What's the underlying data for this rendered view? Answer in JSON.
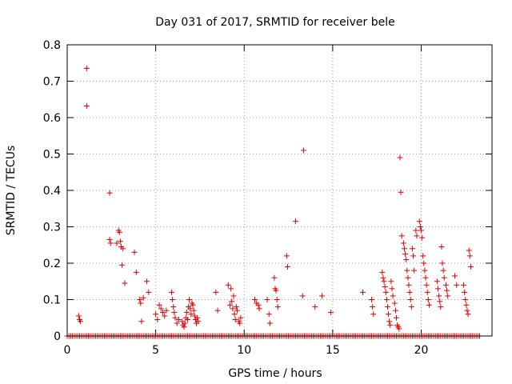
{
  "chart_data": {
    "type": "scatter",
    "title": "Day 031 of 2017, SRMTID for receiver bele",
    "xlabel": "GPS time / hours",
    "ylabel": "SRMTID / TECUs",
    "xlim": [
      0,
      24
    ],
    "ylim": [
      0,
      0.8
    ],
    "x_ticks": [
      0,
      5,
      10,
      15,
      20
    ],
    "y_ticks": [
      0,
      0.1,
      0.2,
      0.3,
      0.4,
      0.5,
      0.6,
      0.7,
      0.8
    ],
    "x_tick_labels": [
      "0",
      "5",
      "10",
      "15",
      "20"
    ],
    "y_tick_labels": [
      "0",
      "0.1",
      "0.2",
      "0.3",
      "0.4",
      "0.5",
      "0.6",
      "0.7",
      "0.8"
    ],
    "grid": true,
    "marker": "+",
    "marker_color": "#e00000",
    "series": [
      {
        "name": "SRMTID",
        "points": [
          [
            0.65,
            0.055
          ],
          [
            0.7,
            0.045
          ],
          [
            0.75,
            0.04
          ],
          [
            1.1,
            0.735
          ],
          [
            1.1,
            0.632
          ],
          [
            2.4,
            0.393
          ],
          [
            2.4,
            0.265
          ],
          [
            2.45,
            0.255
          ],
          [
            2.8,
            0.255
          ],
          [
            2.9,
            0.29
          ],
          [
            2.95,
            0.285
          ],
          [
            3.0,
            0.26
          ],
          [
            3.05,
            0.245
          ],
          [
            3.1,
            0.195
          ],
          [
            3.15,
            0.24
          ],
          [
            3.25,
            0.145
          ],
          [
            3.8,
            0.23
          ],
          [
            3.9,
            0.175
          ],
          [
            4.1,
            0.1
          ],
          [
            4.15,
            0.09
          ],
          [
            4.2,
            0.04
          ],
          [
            4.3,
            0.105
          ],
          [
            4.5,
            0.15
          ],
          [
            4.6,
            0.12
          ],
          [
            5.0,
            0.06
          ],
          [
            5.1,
            0.045
          ],
          [
            5.2,
            0.085
          ],
          [
            5.3,
            0.075
          ],
          [
            5.4,
            0.065
          ],
          [
            5.5,
            0.055
          ],
          [
            5.6,
            0.07
          ],
          [
            5.9,
            0.12
          ],
          [
            5.95,
            0.1
          ],
          [
            6.0,
            0.08
          ],
          [
            6.05,
            0.065
          ],
          [
            6.1,
            0.05
          ],
          [
            6.2,
            0.035
          ],
          [
            6.3,
            0.045
          ],
          [
            6.5,
            0.04
          ],
          [
            6.55,
            0.03
          ],
          [
            6.6,
            0.025
          ],
          [
            6.65,
            0.035
          ],
          [
            6.7,
            0.05
          ],
          [
            6.75,
            0.065
          ],
          [
            6.8,
            0.045
          ],
          [
            6.85,
            0.08
          ],
          [
            6.9,
            0.1
          ],
          [
            6.95,
            0.075
          ],
          [
            7.0,
            0.06
          ],
          [
            7.05,
            0.09
          ],
          [
            7.1,
            0.085
          ],
          [
            7.15,
            0.07
          ],
          [
            7.2,
            0.055
          ],
          [
            7.25,
            0.045
          ],
          [
            7.3,
            0.035
          ],
          [
            7.35,
            0.05
          ],
          [
            7.4,
            0.04
          ],
          [
            8.4,
            0.12
          ],
          [
            8.5,
            0.07
          ],
          [
            9.1,
            0.14
          ],
          [
            9.2,
            0.085
          ],
          [
            9.25,
            0.13
          ],
          [
            9.3,
            0.095
          ],
          [
            9.35,
            0.075
          ],
          [
            9.4,
            0.11
          ],
          [
            9.45,
            0.06
          ],
          [
            9.5,
            0.045
          ],
          [
            9.55,
            0.08
          ],
          [
            9.6,
            0.07
          ],
          [
            9.7,
            0.04
          ],
          [
            9.75,
            0.035
          ],
          [
            9.8,
            0.05
          ],
          [
            10.6,
            0.1
          ],
          [
            10.7,
            0.09
          ],
          [
            10.8,
            0.085
          ],
          [
            10.85,
            0.075
          ],
          [
            11.3,
            0.1
          ],
          [
            11.4,
            0.06
          ],
          [
            11.45,
            0.035
          ],
          [
            11.7,
            0.16
          ],
          [
            11.75,
            0.13
          ],
          [
            11.8,
            0.125
          ],
          [
            11.85,
            0.1
          ],
          [
            11.9,
            0.08
          ],
          [
            12.4,
            0.22
          ],
          [
            12.45,
            0.19
          ],
          [
            12.9,
            0.315
          ],
          [
            13.35,
            0.51
          ],
          [
            13.3,
            0.11
          ],
          [
            14.0,
            0.08
          ],
          [
            14.4,
            0.11
          ],
          [
            14.9,
            0.065
          ],
          [
            16.7,
            0.12
          ],
          [
            17.2,
            0.1
          ],
          [
            17.25,
            0.08
          ],
          [
            17.3,
            0.06
          ],
          [
            17.8,
            0.175
          ],
          [
            17.85,
            0.16
          ],
          [
            17.9,
            0.15
          ],
          [
            17.95,
            0.135
          ],
          [
            18.0,
            0.12
          ],
          [
            18.05,
            0.1
          ],
          [
            18.1,
            0.08
          ],
          [
            18.15,
            0.06
          ],
          [
            18.2,
            0.04
          ],
          [
            18.25,
            0.03
          ],
          [
            18.3,
            0.15
          ],
          [
            18.35,
            0.13
          ],
          [
            18.4,
            0.11
          ],
          [
            18.5,
            0.09
          ],
          [
            18.55,
            0.07
          ],
          [
            18.6,
            0.05
          ],
          [
            18.65,
            0.03
          ],
          [
            18.7,
            0.025
          ],
          [
            18.75,
            0.02
          ],
          [
            18.8,
            0.49
          ],
          [
            18.85,
            0.395
          ],
          [
            18.9,
            0.275
          ],
          [
            19.0,
            0.255
          ],
          [
            19.05,
            0.24
          ],
          [
            19.1,
            0.225
          ],
          [
            19.15,
            0.21
          ],
          [
            19.2,
            0.18
          ],
          [
            19.25,
            0.16
          ],
          [
            19.3,
            0.14
          ],
          [
            19.35,
            0.12
          ],
          [
            19.4,
            0.1
          ],
          [
            19.45,
            0.08
          ],
          [
            19.5,
            0.24
          ],
          [
            19.55,
            0.22
          ],
          [
            19.6,
            0.18
          ],
          [
            19.7,
            0.29
          ],
          [
            19.75,
            0.275
          ],
          [
            19.9,
            0.315
          ],
          [
            19.95,
            0.3
          ],
          [
            20.0,
            0.29
          ],
          [
            20.05,
            0.27
          ],
          [
            20.1,
            0.22
          ],
          [
            20.15,
            0.2
          ],
          [
            20.2,
            0.18
          ],
          [
            20.25,
            0.16
          ],
          [
            20.3,
            0.14
          ],
          [
            20.35,
            0.12
          ],
          [
            20.4,
            0.1
          ],
          [
            20.45,
            0.085
          ],
          [
            20.9,
            0.15
          ],
          [
            20.95,
            0.13
          ],
          [
            21.0,
            0.11
          ],
          [
            21.05,
            0.095
          ],
          [
            21.1,
            0.08
          ],
          [
            21.15,
            0.245
          ],
          [
            21.2,
            0.2
          ],
          [
            21.25,
            0.18
          ],
          [
            21.3,
            0.16
          ],
          [
            21.4,
            0.14
          ],
          [
            21.45,
            0.125
          ],
          [
            21.5,
            0.11
          ],
          [
            21.9,
            0.165
          ],
          [
            22.0,
            0.14
          ],
          [
            22.4,
            0.14
          ],
          [
            22.45,
            0.12
          ],
          [
            22.5,
            0.1
          ],
          [
            22.55,
            0.085
          ],
          [
            22.6,
            0.07
          ],
          [
            22.65,
            0.06
          ],
          [
            22.7,
            0.235
          ],
          [
            22.75,
            0.22
          ],
          [
            22.8,
            0.19
          ]
        ],
        "zero_baseline_ranges": [
          [
            0.0,
            23.3
          ]
        ]
      }
    ]
  }
}
